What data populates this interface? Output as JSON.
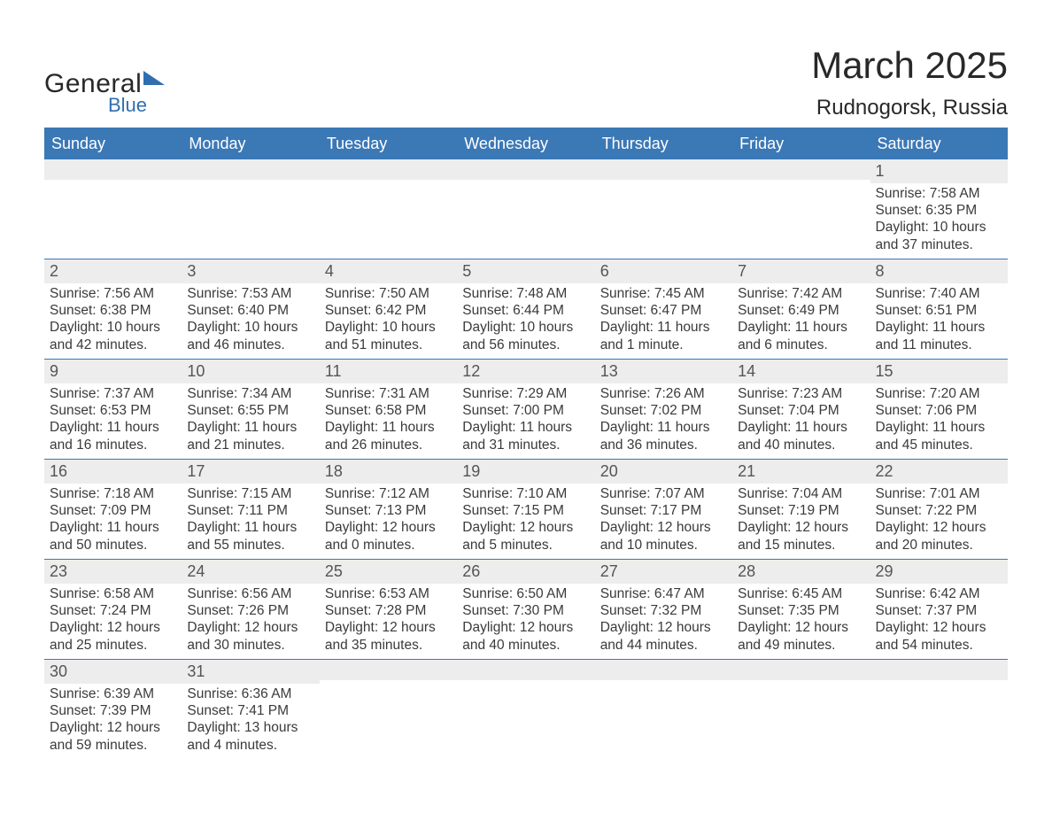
{
  "logo": {
    "word1": "General",
    "word2": "Blue",
    "shape_color": "#2f6fb0",
    "text1_color": "#282828",
    "text2_color": "#2f6fb0"
  },
  "title": {
    "month": "March 2025",
    "location": "Rudnogorsk, Russia",
    "month_fontsize": 42,
    "location_fontsize": 24,
    "text_color": "#282828"
  },
  "colors": {
    "header_bg": "#3b78b6",
    "header_text": "#ffffff",
    "row_divider": "#3b78b6",
    "daynum_bg": "#ededed",
    "daynum_text": "#555555",
    "body_text": "#3a3a3a",
    "page_bg": "#ffffff"
  },
  "weekdays": [
    "Sunday",
    "Monday",
    "Tuesday",
    "Wednesday",
    "Thursday",
    "Friday",
    "Saturday"
  ],
  "weeks": [
    [
      {
        "empty": true
      },
      {
        "empty": true
      },
      {
        "empty": true
      },
      {
        "empty": true
      },
      {
        "empty": true
      },
      {
        "empty": true
      },
      {
        "day": "1",
        "sunrise": "Sunrise: 7:58 AM",
        "sunset": "Sunset: 6:35 PM",
        "daylight": "Daylight: 10 hours and 37 minutes."
      }
    ],
    [
      {
        "day": "2",
        "sunrise": "Sunrise: 7:56 AM",
        "sunset": "Sunset: 6:38 PM",
        "daylight": "Daylight: 10 hours and 42 minutes."
      },
      {
        "day": "3",
        "sunrise": "Sunrise: 7:53 AM",
        "sunset": "Sunset: 6:40 PM",
        "daylight": "Daylight: 10 hours and 46 minutes."
      },
      {
        "day": "4",
        "sunrise": "Sunrise: 7:50 AM",
        "sunset": "Sunset: 6:42 PM",
        "daylight": "Daylight: 10 hours and 51 minutes."
      },
      {
        "day": "5",
        "sunrise": "Sunrise: 7:48 AM",
        "sunset": "Sunset: 6:44 PM",
        "daylight": "Daylight: 10 hours and 56 minutes."
      },
      {
        "day": "6",
        "sunrise": "Sunrise: 7:45 AM",
        "sunset": "Sunset: 6:47 PM",
        "daylight": "Daylight: 11 hours and 1 minute."
      },
      {
        "day": "7",
        "sunrise": "Sunrise: 7:42 AM",
        "sunset": "Sunset: 6:49 PM",
        "daylight": "Daylight: 11 hours and 6 minutes."
      },
      {
        "day": "8",
        "sunrise": "Sunrise: 7:40 AM",
        "sunset": "Sunset: 6:51 PM",
        "daylight": "Daylight: 11 hours and 11 minutes."
      }
    ],
    [
      {
        "day": "9",
        "sunrise": "Sunrise: 7:37 AM",
        "sunset": "Sunset: 6:53 PM",
        "daylight": "Daylight: 11 hours and 16 minutes."
      },
      {
        "day": "10",
        "sunrise": "Sunrise: 7:34 AM",
        "sunset": "Sunset: 6:55 PM",
        "daylight": "Daylight: 11 hours and 21 minutes."
      },
      {
        "day": "11",
        "sunrise": "Sunrise: 7:31 AM",
        "sunset": "Sunset: 6:58 PM",
        "daylight": "Daylight: 11 hours and 26 minutes."
      },
      {
        "day": "12",
        "sunrise": "Sunrise: 7:29 AM",
        "sunset": "Sunset: 7:00 PM",
        "daylight": "Daylight: 11 hours and 31 minutes."
      },
      {
        "day": "13",
        "sunrise": "Sunrise: 7:26 AM",
        "sunset": "Sunset: 7:02 PM",
        "daylight": "Daylight: 11 hours and 36 minutes."
      },
      {
        "day": "14",
        "sunrise": "Sunrise: 7:23 AM",
        "sunset": "Sunset: 7:04 PM",
        "daylight": "Daylight: 11 hours and 40 minutes."
      },
      {
        "day": "15",
        "sunrise": "Sunrise: 7:20 AM",
        "sunset": "Sunset: 7:06 PM",
        "daylight": "Daylight: 11 hours and 45 minutes."
      }
    ],
    [
      {
        "day": "16",
        "sunrise": "Sunrise: 7:18 AM",
        "sunset": "Sunset: 7:09 PM",
        "daylight": "Daylight: 11 hours and 50 minutes."
      },
      {
        "day": "17",
        "sunrise": "Sunrise: 7:15 AM",
        "sunset": "Sunset: 7:11 PM",
        "daylight": "Daylight: 11 hours and 55 minutes."
      },
      {
        "day": "18",
        "sunrise": "Sunrise: 7:12 AM",
        "sunset": "Sunset: 7:13 PM",
        "daylight": "Daylight: 12 hours and 0 minutes."
      },
      {
        "day": "19",
        "sunrise": "Sunrise: 7:10 AM",
        "sunset": "Sunset: 7:15 PM",
        "daylight": "Daylight: 12 hours and 5 minutes."
      },
      {
        "day": "20",
        "sunrise": "Sunrise: 7:07 AM",
        "sunset": "Sunset: 7:17 PM",
        "daylight": "Daylight: 12 hours and 10 minutes."
      },
      {
        "day": "21",
        "sunrise": "Sunrise: 7:04 AM",
        "sunset": "Sunset: 7:19 PM",
        "daylight": "Daylight: 12 hours and 15 minutes."
      },
      {
        "day": "22",
        "sunrise": "Sunrise: 7:01 AM",
        "sunset": "Sunset: 7:22 PM",
        "daylight": "Daylight: 12 hours and 20 minutes."
      }
    ],
    [
      {
        "day": "23",
        "sunrise": "Sunrise: 6:58 AM",
        "sunset": "Sunset: 7:24 PM",
        "daylight": "Daylight: 12 hours and 25 minutes."
      },
      {
        "day": "24",
        "sunrise": "Sunrise: 6:56 AM",
        "sunset": "Sunset: 7:26 PM",
        "daylight": "Daylight: 12 hours and 30 minutes."
      },
      {
        "day": "25",
        "sunrise": "Sunrise: 6:53 AM",
        "sunset": "Sunset: 7:28 PM",
        "daylight": "Daylight: 12 hours and 35 minutes."
      },
      {
        "day": "26",
        "sunrise": "Sunrise: 6:50 AM",
        "sunset": "Sunset: 7:30 PM",
        "daylight": "Daylight: 12 hours and 40 minutes."
      },
      {
        "day": "27",
        "sunrise": "Sunrise: 6:47 AM",
        "sunset": "Sunset: 7:32 PM",
        "daylight": "Daylight: 12 hours and 44 minutes."
      },
      {
        "day": "28",
        "sunrise": "Sunrise: 6:45 AM",
        "sunset": "Sunset: 7:35 PM",
        "daylight": "Daylight: 12 hours and 49 minutes."
      },
      {
        "day": "29",
        "sunrise": "Sunrise: 6:42 AM",
        "sunset": "Sunset: 7:37 PM",
        "daylight": "Daylight: 12 hours and 54 minutes."
      }
    ],
    [
      {
        "day": "30",
        "sunrise": "Sunrise: 6:39 AM",
        "sunset": "Sunset: 7:39 PM",
        "daylight": "Daylight: 12 hours and 59 minutes."
      },
      {
        "day": "31",
        "sunrise": "Sunrise: 6:36 AM",
        "sunset": "Sunset: 7:41 PM",
        "daylight": "Daylight: 13 hours and 4 minutes."
      },
      {
        "empty": true
      },
      {
        "empty": true
      },
      {
        "empty": true
      },
      {
        "empty": true
      },
      {
        "empty": true
      }
    ]
  ]
}
